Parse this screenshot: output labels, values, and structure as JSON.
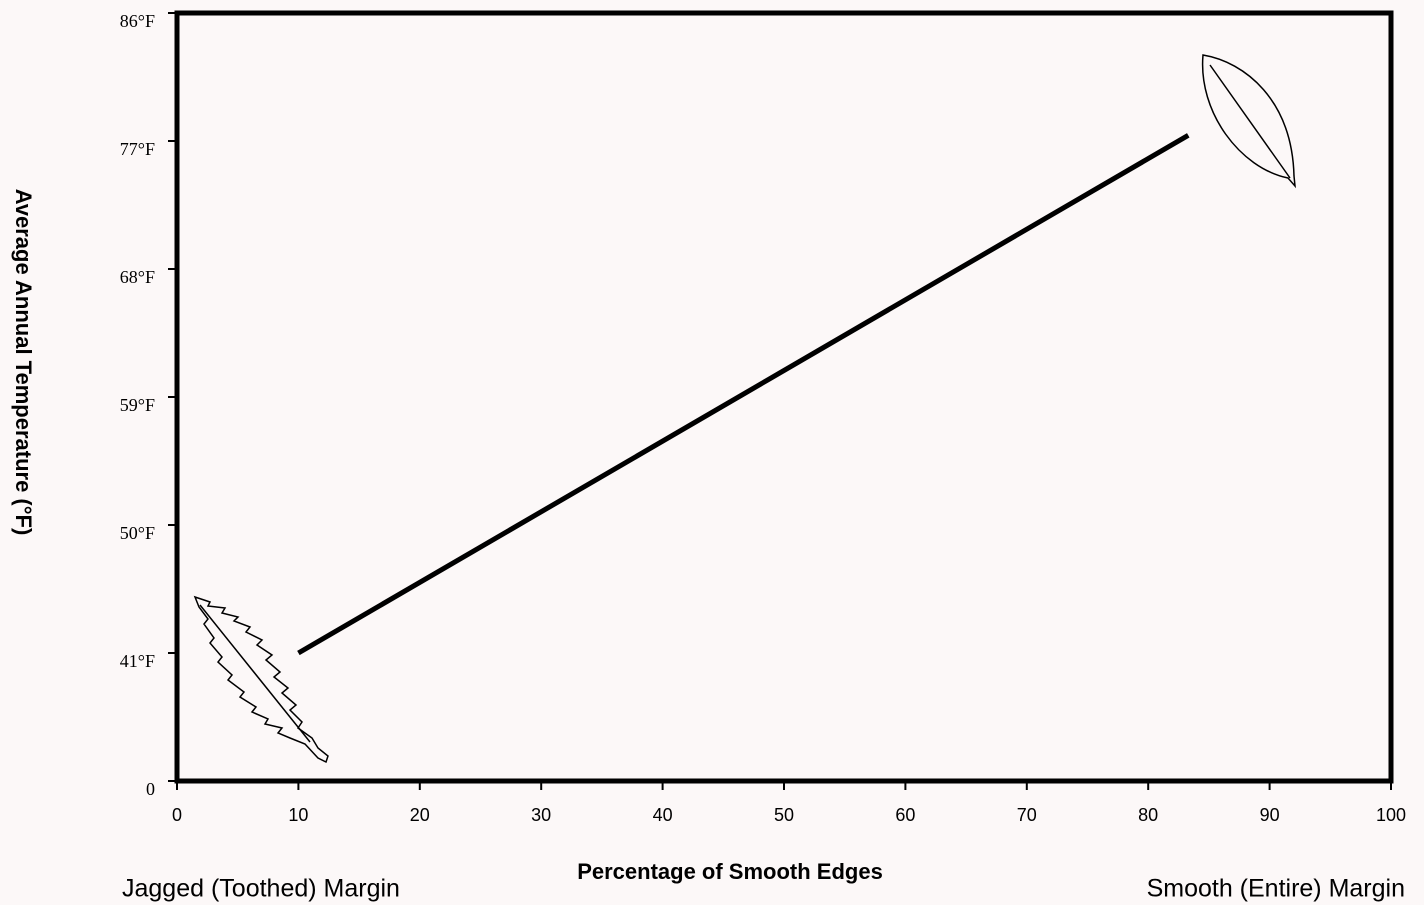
{
  "chart_data": {
    "type": "line",
    "x_label": "Percentage of Smooth Edges",
    "y_label": "Average Annual Temperature (°F)",
    "annotations": [
      "Jagged (Toothed) Margin",
      "Smooth (Entire) Margin"
    ],
    "x": [
      10,
      83.3
    ],
    "series": [
      {
        "color": "#000000",
        "values": [
          41,
          77.4
        ]
      }
    ],
    "xlim": [
      0,
      100
    ],
    "xticks": [
      0,
      10,
      20,
      30,
      40,
      50,
      60,
      70,
      80,
      90,
      100
    ],
    "ylim": [
      0,
      86
    ],
    "yticks": [
      0,
      {
        "value": 41,
        "label": "41°F"
      },
      {
        "value": 50,
        "label": "50°F"
      },
      {
        "value": 59,
        "label": "59°F"
      },
      {
        "value": 68,
        "label": "68°F"
      },
      {
        "value": 77,
        "label": "77°F"
      },
      {
        "value": 86,
        "label": "86°F"
      }
    ],
    "y_scale": "even-ticks"
  }
}
